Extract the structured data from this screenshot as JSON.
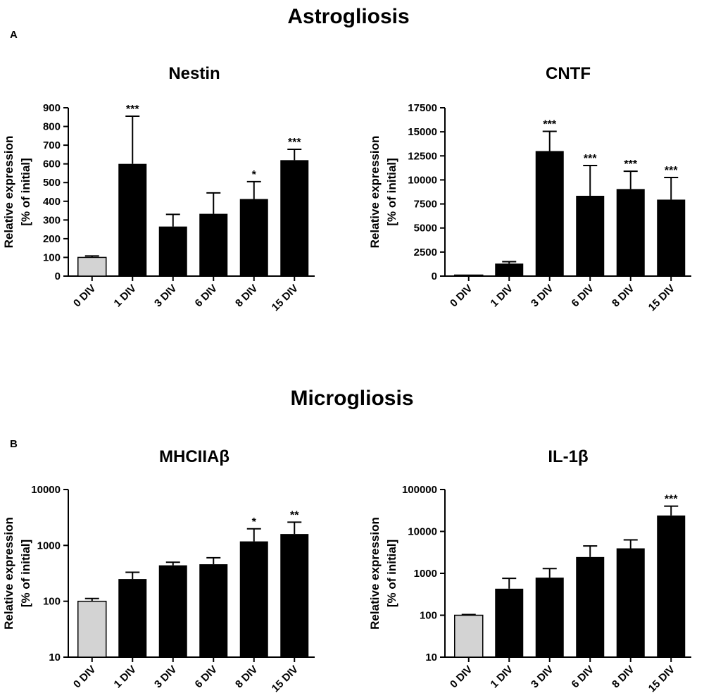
{
  "page": {
    "sections": [
      {
        "title": "Astrogliosis",
        "letter": "A"
      },
      {
        "title": "Microgliosis",
        "letter": "B"
      }
    ]
  },
  "colors": {
    "control": "#d3d3d3",
    "treated": "#000000",
    "axis": "#000000"
  },
  "chart_data": [
    {
      "type": "bar",
      "title": "Nestin",
      "ylabel": [
        "Relative expression",
        "[% of initial]"
      ],
      "xlabel": "",
      "scale": "linear",
      "ylim": [
        0,
        900
      ],
      "yticks": [
        0,
        100,
        200,
        300,
        400,
        500,
        600,
        700,
        800,
        900
      ],
      "ytick_labels": [
        "0",
        "100",
        "200",
        "300",
        "400",
        "500",
        "600",
        "700",
        "800",
        "900"
      ],
      "categories": [
        "0 DIV",
        "1 DIV",
        "3 DIV",
        "6 DIV",
        "8 DIV",
        "15 DIV"
      ],
      "values": [
        100,
        600,
        265,
        333,
        412,
        620
      ],
      "error_upper": [
        108,
        855,
        330,
        445,
        505,
        678
      ],
      "significance": [
        "",
        "***",
        "",
        "",
        "*",
        "***"
      ]
    },
    {
      "type": "bar",
      "title": "CNTF",
      "ylabel": [
        "Relative expression",
        "[% of initial]"
      ],
      "xlabel": "",
      "scale": "linear",
      "ylim": [
        0,
        17500
      ],
      "yticks": [
        0,
        2500,
        5000,
        7500,
        10000,
        12500,
        15000,
        17500
      ],
      "ytick_labels": [
        "0",
        "2500",
        "5000",
        "7500",
        "10000",
        "12500",
        "15000",
        "17500"
      ],
      "categories": [
        "0 DIV",
        "1 DIV",
        "3 DIV",
        "6 DIV",
        "8 DIV",
        "15 DIV"
      ],
      "values": [
        100,
        1300,
        13000,
        8350,
        9050,
        7950
      ],
      "error_upper": [
        100,
        1500,
        15050,
        11500,
        10900,
        10250
      ],
      "significance": [
        "",
        "",
        "***",
        "***",
        "***",
        "***"
      ]
    },
    {
      "type": "bar",
      "title": "MHCIIAβ",
      "ylabel": [
        "Relative expression",
        "[% of initial]"
      ],
      "xlabel": "",
      "scale": "log",
      "ylim": [
        10,
        10000
      ],
      "yticks": [
        10,
        100,
        1000,
        10000
      ],
      "ytick_labels": [
        "10",
        "100",
        "1000",
        "10000"
      ],
      "categories": [
        "0 DIV",
        "1 DIV",
        "3 DIV",
        "6 DIV",
        "8 DIV",
        "15 DIV"
      ],
      "values": [
        100,
        250,
        440,
        460,
        1180,
        1600
      ],
      "error_upper": [
        112,
        330,
        500,
        600,
        1980,
        2600
      ],
      "significance": [
        "",
        "",
        "",
        "",
        "*",
        "**"
      ]
    },
    {
      "type": "bar",
      "title": "IL-1β",
      "ylabel": [
        "Relative expression",
        "[% of initial]"
      ],
      "xlabel": "",
      "scale": "log",
      "ylim": [
        10,
        100000
      ],
      "yticks": [
        10,
        100,
        1000,
        10000,
        100000
      ],
      "ytick_labels": [
        "10",
        "100",
        "1000",
        "10000",
        "100000"
      ],
      "categories": [
        "0 DIV",
        "1 DIV",
        "3 DIV",
        "6 DIV",
        "8 DIV",
        "15 DIV"
      ],
      "values": [
        100,
        430,
        790,
        2450,
        3950,
        24000
      ],
      "error_upper": [
        104,
        760,
        1300,
        4500,
        6300,
        40000
      ],
      "significance": [
        "",
        "",
        "",
        "",
        "",
        "***"
      ]
    }
  ]
}
